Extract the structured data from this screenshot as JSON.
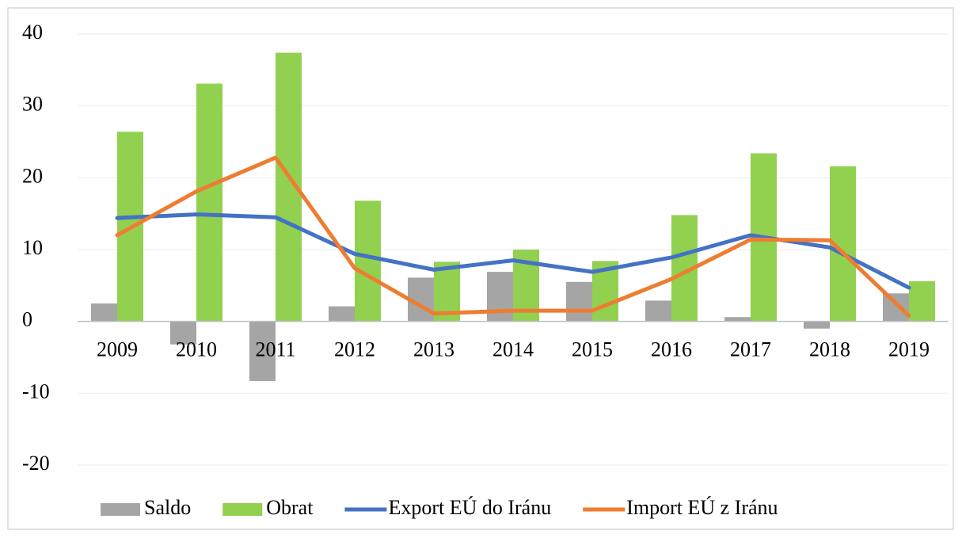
{
  "chart_data": {
    "type": "combo",
    "categories": [
      "2009",
      "2010",
      "2011",
      "2012",
      "2013",
      "2014",
      "2015",
      "2016",
      "2017",
      "2018",
      "2019"
    ],
    "series": [
      {
        "name": "Saldo",
        "type": "bar",
        "color": "#a5a5a5",
        "values": [
          2.5,
          -3.2,
          -8.3,
          2.1,
          6.1,
          6.9,
          5.5,
          2.9,
          0.6,
          -1.0,
          3.9
        ]
      },
      {
        "name": "Obrat",
        "type": "bar",
        "color": "#92d050",
        "values": [
          26.4,
          33.1,
          37.4,
          16.8,
          8.3,
          10.0,
          8.4,
          14.8,
          23.4,
          21.6,
          5.6
        ]
      },
      {
        "name": "Export EÚ do Iránu",
        "type": "line",
        "color": "#4472c4",
        "values": [
          14.4,
          14.9,
          14.5,
          9.4,
          7.2,
          8.5,
          6.9,
          8.9,
          12.0,
          10.3,
          4.7
        ]
      },
      {
        "name": "Import EÚ z Iránu",
        "type": "line",
        "color": "#ed7d31",
        "values": [
          12.0,
          18.1,
          22.8,
          7.4,
          1.1,
          1.5,
          1.5,
          5.9,
          11.4,
          11.3,
          0.8
        ]
      }
    ],
    "ylim": [
      -20,
      40
    ],
    "yticks": [
      -20,
      -10,
      0,
      10,
      20,
      30,
      40
    ],
    "grid": true,
    "legend": "bottom"
  }
}
